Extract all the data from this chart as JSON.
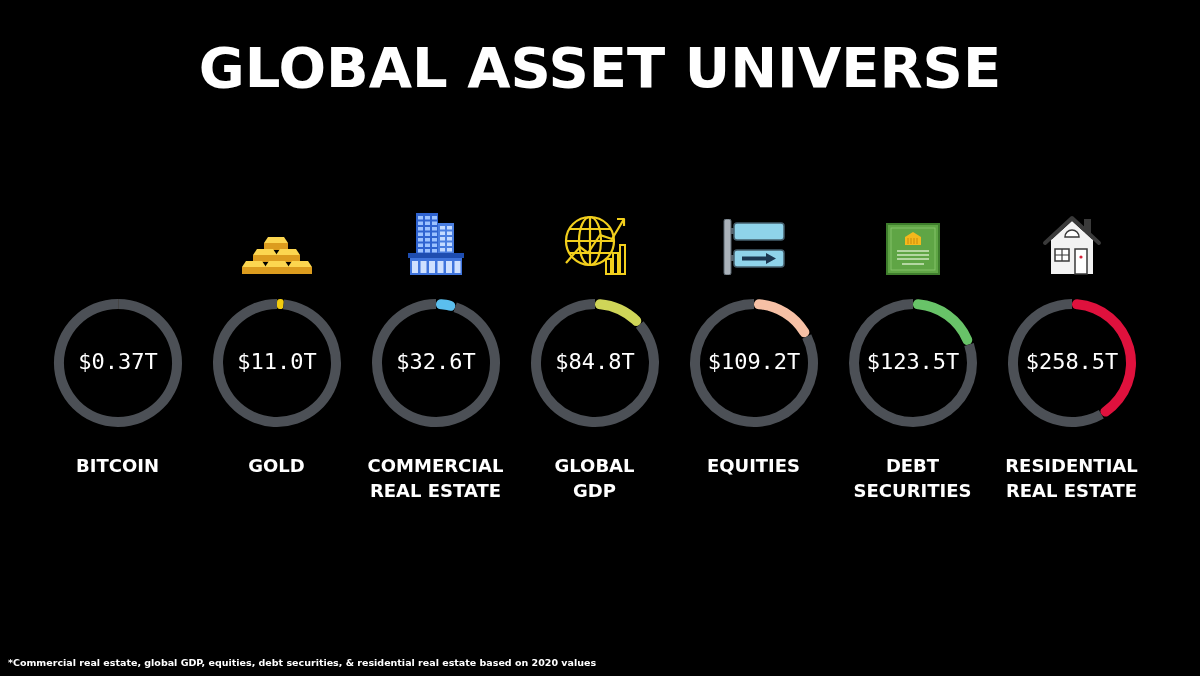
{
  "chart_data": [
    {
      "type": "other",
      "title": "GLOBAL ASSET UNIVERSE",
      "annotations": [
        "*Commercial real estate, global GDP, equities, debt securities, & residential real estate based on 2020 values"
      ]
    },
    {
      "type": "donut",
      "title": "BITCOIN",
      "categories": [
        null,
        null
      ],
      "values": [
        0.37,
        620
      ],
      "colors": [
        "#eb9628",
        "#4c5056"
      ],
      "value_labels": [
        "$0.37T",
        null
      ]
    },
    {
      "type": "donut",
      "title": "GOLD",
      "categories": [
        null,
        null
      ],
      "values": [
        11.0,
        609
      ],
      "colors": [
        "#f2cb0e",
        "#4c5056"
      ],
      "value_labels": [
        "$11.0T",
        null
      ]
    },
    {
      "type": "donut",
      "title": "COMMERCIAL REAL ESTATE",
      "categories": [
        null,
        null
      ],
      "values": [
        32.6,
        587
      ],
      "colors": [
        "#5bbfee",
        "#4c5056"
      ],
      "value_labels": [
        "$32.6T",
        null
      ]
    },
    {
      "type": "donut",
      "title": "GLOBAL GDP",
      "categories": [
        null,
        null
      ],
      "values": [
        84.8,
        535
      ],
      "colors": [
        "#cfd558",
        "#4c5056"
      ],
      "value_labels": [
        "$84.8T",
        null
      ]
    },
    {
      "type": "donut",
      "title": "EQUITIES",
      "categories": [
        null,
        null
      ],
      "values": [
        109.2,
        511
      ],
      "colors": [
        "#f6c0a5",
        "#4c5056"
      ],
      "value_labels": [
        "$109.2T",
        null
      ]
    },
    {
      "type": "donut",
      "title": "DEBT SECURITIES",
      "categories": [
        null,
        null
      ],
      "values": [
        123.5,
        496
      ],
      "colors": [
        "#68c368",
        "#4c5056"
      ],
      "value_labels": [
        "$123.5T",
        null
      ]
    },
    {
      "type": "donut",
      "title": "RESIDENTIAL REAL ESTATE",
      "categories": [
        null,
        null
      ],
      "values": [
        258.5,
        361
      ],
      "colors": [
        "#df113d",
        "#4c5056"
      ],
      "value_labels": [
        "$258.5T",
        null
      ]
    }
  ]
}
